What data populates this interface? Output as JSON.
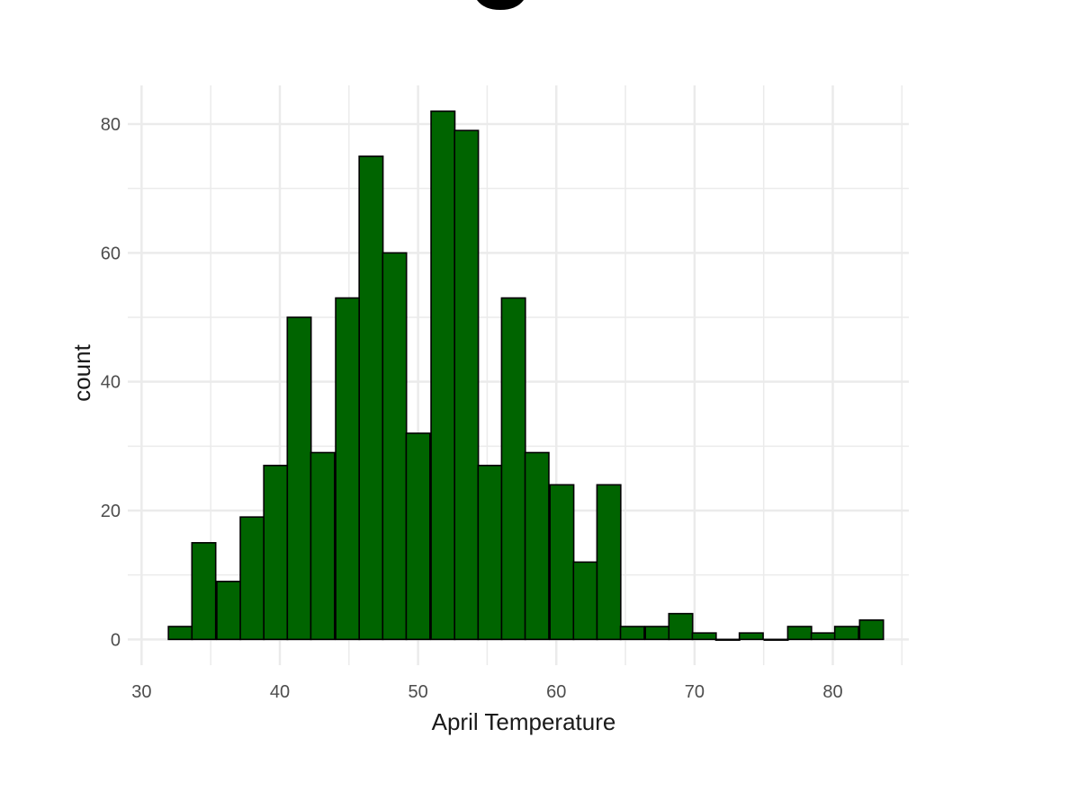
{
  "chart_data": {
    "type": "bar",
    "title": "",
    "xlabel": "April Temperature",
    "ylabel": "count",
    "xlim": [
      29,
      85.5
    ],
    "ylim": [
      -4,
      86
    ],
    "xticks": [
      30,
      40,
      50,
      60,
      70,
      80
    ],
    "yticks": [
      0,
      20,
      40,
      60,
      80
    ],
    "x_minor_gridlines": [
      35,
      45,
      55,
      65,
      75,
      85
    ],
    "y_minor_gridlines": [
      10,
      30,
      50,
      70
    ],
    "grid": true,
    "bin_width": 1.72,
    "bins": [
      {
        "x": 32.8,
        "count": 2
      },
      {
        "x": 34.5,
        "count": 15
      },
      {
        "x": 36.3,
        "count": 9
      },
      {
        "x": 38.0,
        "count": 19
      },
      {
        "x": 39.7,
        "count": 27
      },
      {
        "x": 41.4,
        "count": 50
      },
      {
        "x": 43.1,
        "count": 29
      },
      {
        "x": 44.9,
        "count": 53
      },
      {
        "x": 46.6,
        "count": 75
      },
      {
        "x": 48.3,
        "count": 60
      },
      {
        "x": 50.0,
        "count": 32
      },
      {
        "x": 51.8,
        "count": 82
      },
      {
        "x": 53.5,
        "count": 79
      },
      {
        "x": 55.2,
        "count": 27
      },
      {
        "x": 56.9,
        "count": 53
      },
      {
        "x": 58.6,
        "count": 29
      },
      {
        "x": 60.4,
        "count": 24
      },
      {
        "x": 62.1,
        "count": 12
      },
      {
        "x": 63.8,
        "count": 24
      },
      {
        "x": 65.5,
        "count": 2
      },
      {
        "x": 67.3,
        "count": 2
      },
      {
        "x": 69.0,
        "count": 4
      },
      {
        "x": 70.7,
        "count": 1
      },
      {
        "x": 72.4,
        "count": 0
      },
      {
        "x": 74.1,
        "count": 1
      },
      {
        "x": 75.9,
        "count": 0
      },
      {
        "x": 77.6,
        "count": 2
      },
      {
        "x": 79.3,
        "count": 1
      },
      {
        "x": 81.0,
        "count": 2
      },
      {
        "x": 82.8,
        "count": 3
      }
    ],
    "colors": {
      "fill": "#006400",
      "stroke": "#000000",
      "grid": "#ebebeb",
      "tick_text": "#4d4d4d",
      "axis_title": "#1a1a1a"
    }
  }
}
